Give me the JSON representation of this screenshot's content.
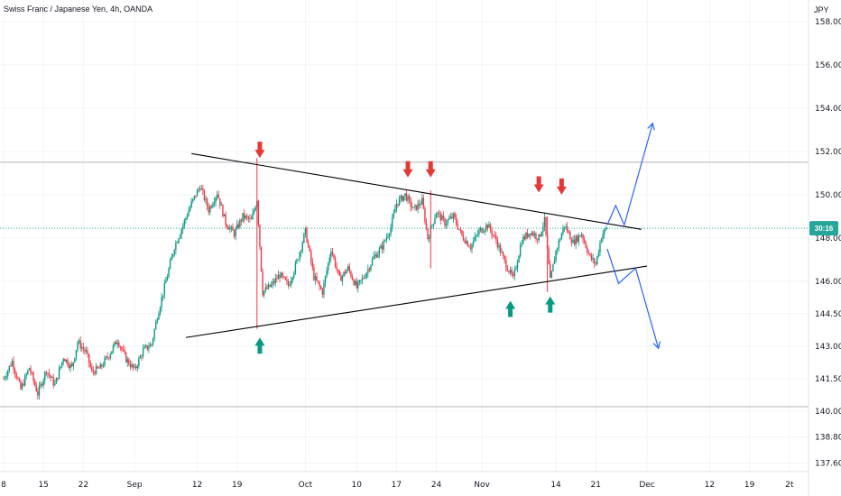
{
  "chart_data": {
    "type": "candlestick",
    "title": "Swiss Franc / Japanese Yen, 4h, OANDA",
    "y_unit": "JPY",
    "ylim": [
      137.2,
      159.0
    ],
    "y_ticks": [
      {
        "value": 158.0,
        "label": "158.000"
      },
      {
        "value": 156.0,
        "label": "156.000"
      },
      {
        "value": 154.0,
        "label": "154.000"
      },
      {
        "value": 152.0,
        "label": "152.000"
      },
      {
        "value": 150.0,
        "label": "150.000"
      },
      {
        "value": 148.0,
        "label": "148.000"
      },
      {
        "value": 146.0,
        "label": "146.000"
      },
      {
        "value": 144.5,
        "label": "144.500"
      },
      {
        "value": 143.0,
        "label": "143.000"
      },
      {
        "value": 141.5,
        "label": "141.500"
      },
      {
        "value": 140.0,
        "label": "140.000"
      },
      {
        "value": 138.8,
        "label": "138.800"
      },
      {
        "value": 137.6,
        "label": "137.600"
      }
    ],
    "x_ticks": [
      {
        "day": 0,
        "label": "8"
      },
      {
        "day": 7,
        "label": "15"
      },
      {
        "day": 14,
        "label": "22"
      },
      {
        "day": 23,
        "label": "Sep"
      },
      {
        "day": 34,
        "label": "12"
      },
      {
        "day": 41,
        "label": "19"
      },
      {
        "day": 53,
        "label": "Oct"
      },
      {
        "day": 62,
        "label": "10"
      },
      {
        "day": 69,
        "label": "17"
      },
      {
        "day": 76,
        "label": "24"
      },
      {
        "day": 84,
        "label": "Nov"
      },
      {
        "day": 97,
        "label": "14"
      },
      {
        "day": 104,
        "label": "21"
      },
      {
        "day": 113,
        "label": "Dec"
      },
      {
        "day": 124,
        "label": "12"
      },
      {
        "day": 131,
        "label": "19"
      },
      {
        "day": 138,
        "label": "2t"
      }
    ],
    "price_badge": {
      "value": 148.45,
      "label": "30:16",
      "color": "#26a69a"
    },
    "horizontal_levels": [
      151.5,
      140.2
    ],
    "trendlines": [
      {
        "name": "upper",
        "color": "#000000",
        "from": {
          "day": 33,
          "price": 151.9
        },
        "to": {
          "day": 112,
          "price": 148.4
        }
      },
      {
        "name": "lower",
        "color": "#000000",
        "from": {
          "day": 32,
          "price": 143.4
        },
        "to": {
          "day": 113,
          "price": 146.7
        }
      }
    ],
    "projections": [
      {
        "name": "bullish",
        "color": "#2962ff",
        "points": [
          {
            "day": 106,
            "price": 148.6
          },
          {
            "day": 107.5,
            "price": 149.5
          },
          {
            "day": 109,
            "price": 148.6
          },
          {
            "day": 114,
            "price": 153.3
          }
        ]
      },
      {
        "name": "bearish",
        "color": "#2962ff",
        "points": [
          {
            "day": 106,
            "price": 147.5
          },
          {
            "day": 108,
            "price": 145.9
          },
          {
            "day": 111,
            "price": 146.6
          },
          {
            "day": 115,
            "price": 142.9
          }
        ]
      }
    ],
    "arrows": [
      {
        "direction": "down",
        "color": "#e53935",
        "day": 45,
        "price": 151.7
      },
      {
        "direction": "down",
        "color": "#e53935",
        "day": 71,
        "price": 150.8
      },
      {
        "direction": "down",
        "color": "#e53935",
        "day": 75,
        "price": 150.8
      },
      {
        "direction": "down",
        "color": "#e53935",
        "day": 94,
        "price": 150.1
      },
      {
        "direction": "down",
        "color": "#e53935",
        "day": 98,
        "price": 150.0
      },
      {
        "direction": "up",
        "color": "#089981",
        "day": 45,
        "price": 143.4
      },
      {
        "direction": "up",
        "color": "#089981",
        "day": 89,
        "price": 145.1
      },
      {
        "direction": "up",
        "color": "#089981",
        "day": 96,
        "price": 145.3
      }
    ],
    "colors": {
      "up": "#089981",
      "down": "#f23645",
      "grid": "#f0f3fa",
      "axis_text": "#131722"
    },
    "series": [
      {
        "day": 0,
        "price": 141.5
      },
      {
        "day": 1.5,
        "price": 142.3
      },
      {
        "day": 3,
        "price": 141.0
      },
      {
        "day": 4.5,
        "price": 142.0
      },
      {
        "day": 6,
        "price": 140.8
      },
      {
        "day": 7.5,
        "price": 141.9
      },
      {
        "day": 9,
        "price": 141.2
      },
      {
        "day": 10.5,
        "price": 142.5
      },
      {
        "day": 12,
        "price": 142.0
      },
      {
        "day": 13,
        "price": 143.2
      },
      {
        "day": 14.5,
        "price": 142.7
      },
      {
        "day": 15.5,
        "price": 141.8
      },
      {
        "day": 17,
        "price": 142.0
      },
      {
        "day": 18.5,
        "price": 142.6
      },
      {
        "day": 20,
        "price": 143.3
      },
      {
        "day": 21.5,
        "price": 142.4
      },
      {
        "day": 23,
        "price": 141.9
      },
      {
        "day": 24.5,
        "price": 142.8
      },
      {
        "day": 26,
        "price": 143.1
      },
      {
        "day": 27,
        "price": 144.4
      },
      {
        "day": 28.5,
        "price": 146.0
      },
      {
        "day": 30,
        "price": 147.6
      },
      {
        "day": 31.5,
        "price": 148.6
      },
      {
        "day": 33,
        "price": 149.6
      },
      {
        "day": 34.5,
        "price": 150.4
      },
      {
        "day": 36,
        "price": 149.3
      },
      {
        "day": 37.5,
        "price": 150.1
      },
      {
        "day": 39,
        "price": 148.7
      },
      {
        "day": 40.5,
        "price": 148.2
      },
      {
        "day": 42,
        "price": 149.0
      },
      {
        "day": 43.5,
        "price": 148.8
      },
      {
        "day": 44.5,
        "price": 149.8
      },
      {
        "day": 45.5,
        "price": 145.5
      },
      {
        "day": 47,
        "price": 145.8
      },
      {
        "day": 48.5,
        "price": 146.3
      },
      {
        "day": 50,
        "price": 145.8
      },
      {
        "day": 51.5,
        "price": 146.9
      },
      {
        "day": 53,
        "price": 148.3
      },
      {
        "day": 54.5,
        "price": 146.2
      },
      {
        "day": 56,
        "price": 145.5
      },
      {
        "day": 57.5,
        "price": 147.5
      },
      {
        "day": 59,
        "price": 146.1
      },
      {
        "day": 60.5,
        "price": 146.6
      },
      {
        "day": 62,
        "price": 145.7
      },
      {
        "day": 63.5,
        "price": 146.3
      },
      {
        "day": 65,
        "price": 147.1
      },
      {
        "day": 66.5,
        "price": 147.6
      },
      {
        "day": 68,
        "price": 148.5
      },
      {
        "day": 69,
        "price": 149.6
      },
      {
        "day": 70.5,
        "price": 150.0
      },
      {
        "day": 72,
        "price": 149.3
      },
      {
        "day": 73.5,
        "price": 149.7
      },
      {
        "day": 74.5,
        "price": 148.0
      },
      {
        "day": 76,
        "price": 149.2
      },
      {
        "day": 77.5,
        "price": 148.7
      },
      {
        "day": 79,
        "price": 149.0
      },
      {
        "day": 80.5,
        "price": 148.1
      },
      {
        "day": 82,
        "price": 147.6
      },
      {
        "day": 83.5,
        "price": 148.3
      },
      {
        "day": 85,
        "price": 148.6
      },
      {
        "day": 86.5,
        "price": 147.9
      },
      {
        "day": 88,
        "price": 146.9
      },
      {
        "day": 89.5,
        "price": 146.1
      },
      {
        "day": 91,
        "price": 147.9
      },
      {
        "day": 92.5,
        "price": 148.3
      },
      {
        "day": 94,
        "price": 148.0
      },
      {
        "day": 95,
        "price": 148.8
      },
      {
        "day": 96,
        "price": 146.0
      },
      {
        "day": 97,
        "price": 147.4
      },
      {
        "day": 98.5,
        "price": 148.6
      },
      {
        "day": 100,
        "price": 147.8
      },
      {
        "day": 101.5,
        "price": 148.2
      },
      {
        "day": 103,
        "price": 147.1
      },
      {
        "day": 104,
        "price": 146.8
      },
      {
        "day": 105,
        "price": 148.1
      },
      {
        "day": 106,
        "price": 148.5
      }
    ]
  }
}
